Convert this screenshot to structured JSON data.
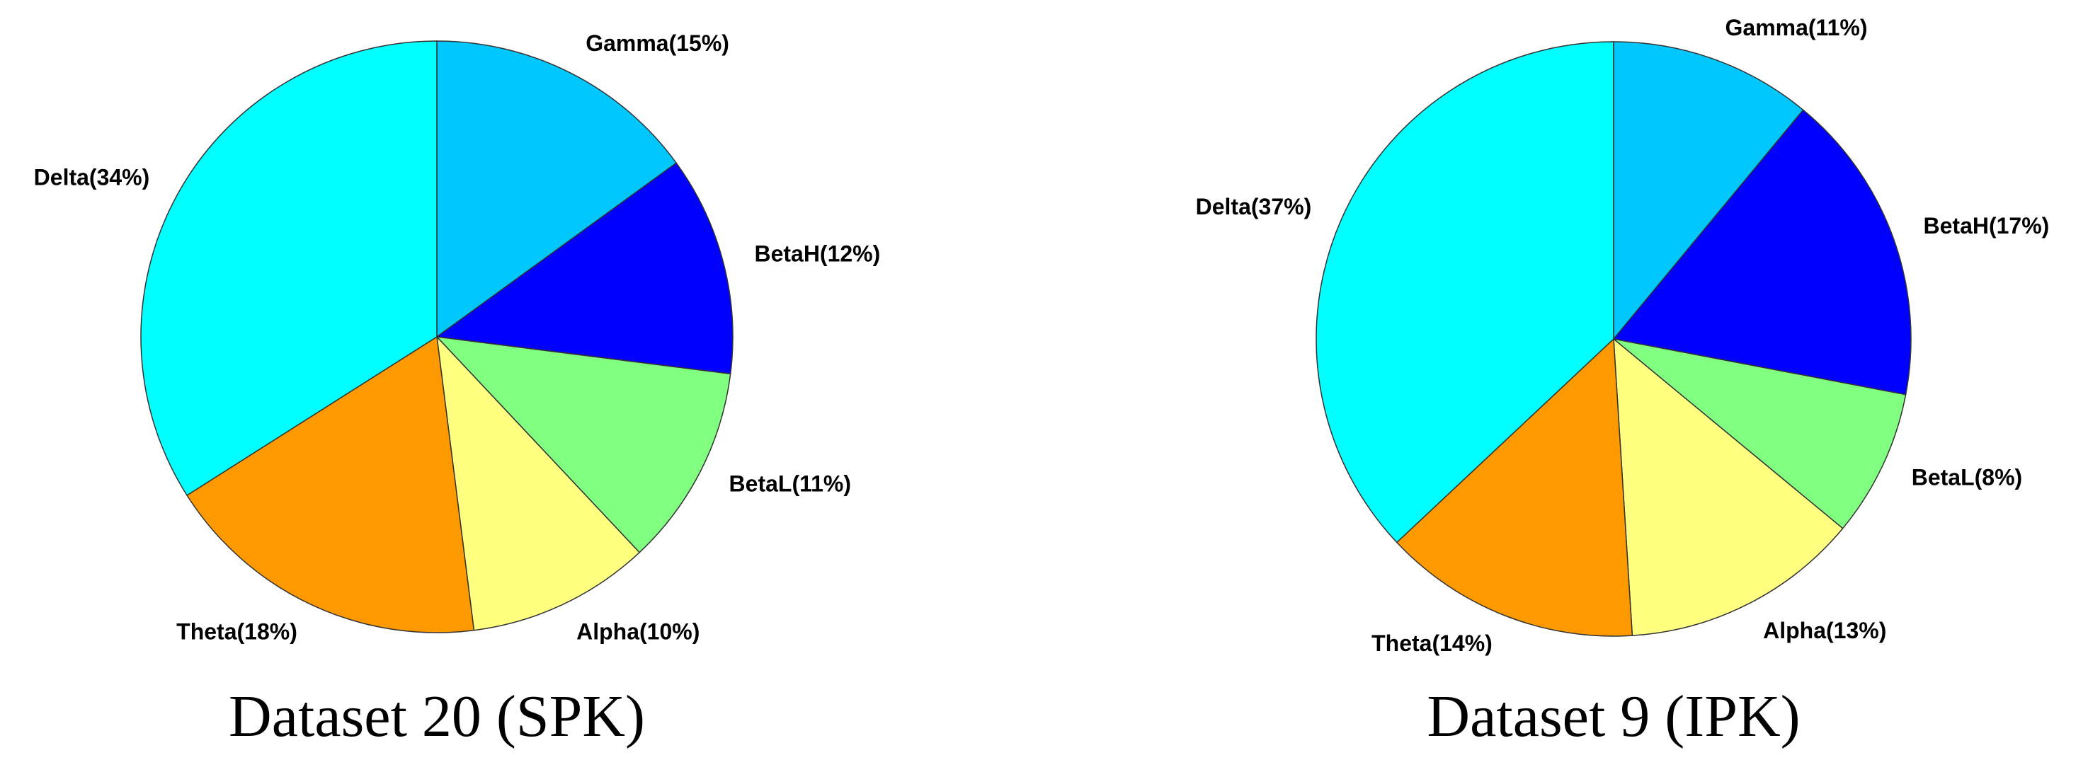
{
  "chart_data": [
    {
      "type": "pie",
      "title": "Dataset 20 (SPK)",
      "values": [
        15,
        12,
        11,
        10,
        18,
        34
      ],
      "value_labels": [
        "Gamma(15%)",
        "BetaH(12%)",
        "BetaL(11%)",
        "Alpha(10%)",
        "Theta(18%)",
        "Delta(34%)"
      ],
      "colors": [
        "#00c8ff",
        "#0000ff",
        "#80ff80",
        "#ffff80",
        "#ff9900",
        "#00ffff"
      ]
    },
    {
      "type": "pie",
      "title": "Dataset 9 (IPK)",
      "values": [
        11,
        17,
        8,
        13,
        14,
        37
      ],
      "value_labels": [
        "Gamma(11%)",
        "BetaH(17%)",
        "BetaL(8%)",
        "Alpha(13%)",
        "Theta(14%)",
        "Delta(37%)"
      ],
      "colors": [
        "#00c8ff",
        "#0000ff",
        "#80ff80",
        "#ffff80",
        "#ff9900",
        "#00ffff"
      ]
    }
  ]
}
